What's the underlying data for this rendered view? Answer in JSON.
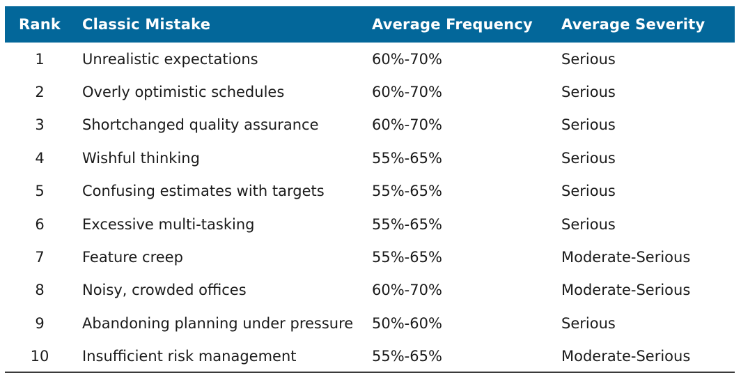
{
  "header": {
    "rank": "Rank",
    "mistake": "Classic Mistake",
    "frequency": "Average Frequency",
    "severity": "Average Severity"
  },
  "rows": [
    {
      "rank": "1",
      "mistake": "Unrealistic expectations",
      "frequency": "60%-70%",
      "severity": "Serious"
    },
    {
      "rank": "2",
      "mistake": "Overly optimistic schedules",
      "frequency": "60%-70%",
      "severity": "Serious"
    },
    {
      "rank": "3",
      "mistake": "Shortchanged quality assurance",
      "frequency": "60%-70%",
      "severity": "Serious"
    },
    {
      "rank": "4",
      "mistake": "Wishful thinking",
      "frequency": "55%-65%",
      "severity": "Serious"
    },
    {
      "rank": "5",
      "mistake": "Confusing estimates with targets",
      "frequency": "55%-65%",
      "severity": "Serious"
    },
    {
      "rank": "6",
      "mistake": "Excessive multi-tasking",
      "frequency": "55%-65%",
      "severity": "Serious"
    },
    {
      "rank": "7",
      "mistake": "Feature creep",
      "frequency": "55%-65%",
      "severity": "Moderate-Serious"
    },
    {
      "rank": "8",
      "mistake": "Noisy, crowded offices",
      "frequency": "60%-70%",
      "severity": "Moderate-Serious"
    },
    {
      "rank": "9",
      "mistake": "Abandoning planning under pressure",
      "frequency": "50%-60%",
      "severity": "Serious"
    },
    {
      "rank": "10",
      "mistake": "Insufficient risk management",
      "frequency": "55%-65%",
      "severity": "Moderate-Serious"
    }
  ],
  "colors": {
    "header_background": "#03679a",
    "header_text": "#ffffff",
    "body_text": "#1a1a1a"
  }
}
